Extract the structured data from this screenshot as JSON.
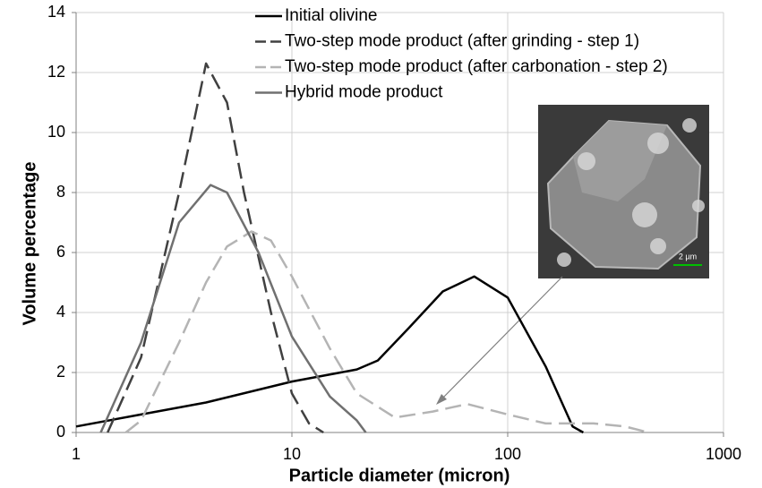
{
  "chart_data": {
    "type": "line",
    "x_label": "Particle diameter (micron)",
    "y_label": "Volume percentage",
    "x_log": true,
    "xlim": [
      1,
      1000
    ],
    "xticks": [
      1,
      10,
      100,
      1000
    ],
    "ylim": [
      0,
      14
    ],
    "yticks": [
      0,
      2,
      4,
      6,
      8,
      10,
      12,
      14
    ],
    "grid": true,
    "legend": "top",
    "inset_scale_label": "2 µm",
    "series": [
      {
        "name": "Initial olivine",
        "color": "#000000",
        "dash": "solid",
        "x": [
          1,
          2,
          4,
          10,
          20,
          25,
          35,
          50,
          70,
          100,
          150,
          200,
          224
        ],
        "values": [
          0.2,
          0.6,
          1.0,
          1.7,
          2.1,
          2.4,
          3.5,
          4.7,
          5.2,
          4.5,
          2.2,
          0.2,
          0
        ]
      },
      {
        "name": "Two-step mode product (after grinding - step 1)",
        "color": "#404040",
        "dash": "dashed",
        "x": [
          1.4,
          2,
          3,
          4,
          5,
          6,
          8,
          10,
          12,
          14
        ],
        "values": [
          0,
          2.5,
          8,
          12.3,
          11,
          8,
          4,
          1.3,
          0.3,
          0
        ]
      },
      {
        "name": "Two-step mode product (after carbonation - step 2)",
        "color": "#b4b4b4",
        "dash": "dashed",
        "x": [
          1.7,
          2,
          3,
          4,
          5,
          6.5,
          8,
          10,
          15,
          20,
          30,
          45,
          65,
          100,
          150,
          250,
          350,
          450
        ],
        "values": [
          0,
          0.4,
          3,
          5,
          6.2,
          6.7,
          6.4,
          5.2,
          2.8,
          1.3,
          0.5,
          0.7,
          0.95,
          0.6,
          0.3,
          0.3,
          0.2,
          0
        ]
      },
      {
        "name": "Hybrid mode product",
        "color": "#707070",
        "dash": "solid",
        "x": [
          1.3,
          2,
          3,
          4.2,
          5,
          7,
          10,
          15,
          20,
          22
        ],
        "values": [
          0,
          3,
          7,
          8.25,
          8,
          6,
          3.2,
          1.2,
          0.4,
          0
        ]
      }
    ]
  }
}
